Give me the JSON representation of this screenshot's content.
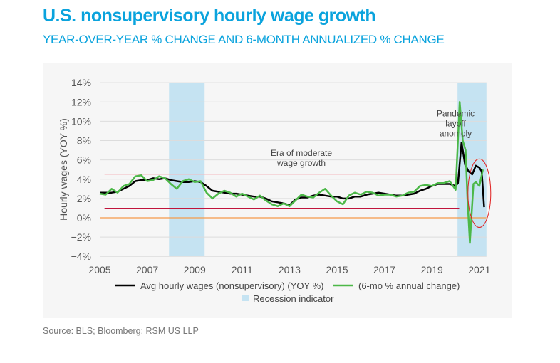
{
  "title": "U.S. nonsupervisory hourly wage growth",
  "subtitle": "YEAR-OVER-YEAR % CHANGE AND 6-MONTH ANNUALIZED % CHANGE",
  "source": "Source: BLS; Bloomberg; RSM US LLP",
  "chart_data": {
    "type": "line",
    "ylabel": "Hourly wages (YOY %)",
    "xlabel": "",
    "ylim": [
      -4,
      14
    ],
    "xlim": [
      2005,
      2021.3
    ],
    "yticks": [
      14,
      12,
      10,
      8,
      6,
      4,
      2,
      0,
      -2,
      -4
    ],
    "ytick_labels": [
      "14%",
      "12%",
      "10%",
      "8%",
      "6%",
      "4%",
      "2%",
      "0%",
      "−2%",
      "−4%"
    ],
    "xticks": [
      "2005",
      "2007",
      "2009",
      "2011",
      "2013",
      "2015",
      "2017",
      "2019",
      "2021"
    ],
    "grid": true,
    "legend_position": "bottom",
    "colors": {
      "yoy": "#000000",
      "six_month": "#4cb848",
      "recession": "#c5e3f2",
      "zero_line": "#f59a4a",
      "ref_high": "#f4b8bd",
      "ref_low": "#c0143c",
      "ellipse": "#e02020"
    },
    "reference_lines": [
      4.5,
      1.0,
      0
    ],
    "recessions": [
      [
        2007.92,
        2009.42
      ],
      [
        2020.08,
        2021.3
      ]
    ],
    "annotations": [
      {
        "text": [
          "Era of moderate",
          "wage growth"
        ],
        "x": 2013.5,
        "y": 6.4
      },
      {
        "text": [
          "Pandemic",
          "layoff",
          "anomoly"
        ],
        "x": 2020.0,
        "y": 10.5
      }
    ],
    "highlight_ellipse": {
      "x_range": [
        2020.7,
        2021.3
      ],
      "y_range": [
        -1.0,
        6.1
      ]
    },
    "series": [
      {
        "name": "Avg hourly wages (nonsupervisory) (YOY %)",
        "key": "yoy",
        "x": [
          2005,
          2005.25,
          2005.5,
          2005.75,
          2006,
          2006.25,
          2006.5,
          2006.75,
          2007,
          2007.25,
          2007.5,
          2007.75,
          2008,
          2008.25,
          2008.5,
          2008.75,
          2009,
          2009.25,
          2009.5,
          2009.75,
          2010,
          2010.25,
          2010.5,
          2010.75,
          2011,
          2011.25,
          2011.5,
          2011.75,
          2012,
          2012.25,
          2012.5,
          2012.75,
          2013,
          2013.25,
          2013.5,
          2013.75,
          2014,
          2014.25,
          2014.5,
          2014.75,
          2015,
          2015.25,
          2015.5,
          2015.75,
          2016,
          2016.25,
          2016.5,
          2016.75,
          2017,
          2017.25,
          2017.5,
          2017.75,
          2018,
          2018.25,
          2018.5,
          2018.75,
          2019,
          2019.25,
          2019.5,
          2019.75,
          2020,
          2020.1,
          2020.25,
          2020.4,
          2020.55,
          2020.7,
          2020.85,
          2021.0,
          2021.1,
          2021.2
        ],
        "y": [
          2.6,
          2.6,
          2.6,
          2.7,
          3.0,
          3.3,
          3.8,
          3.9,
          3.9,
          4.1,
          4.0,
          4.1,
          3.9,
          3.8,
          3.7,
          3.7,
          3.8,
          3.7,
          3.3,
          2.8,
          2.7,
          2.6,
          2.5,
          2.5,
          2.4,
          2.3,
          2.2,
          2.2,
          2.0,
          1.7,
          1.6,
          1.5,
          1.3,
          1.9,
          2.1,
          2.1,
          2.3,
          2.4,
          2.3,
          2.2,
          2.2,
          2.0,
          2.0,
          2.2,
          2.2,
          2.4,
          2.5,
          2.6,
          2.5,
          2.4,
          2.3,
          2.3,
          2.4,
          2.5,
          2.8,
          3.0,
          3.3,
          3.5,
          3.5,
          3.5,
          3.3,
          3.6,
          7.8,
          5.5,
          4.8,
          4.5,
          5.4,
          5.2,
          4.8,
          1.1
        ]
      },
      {
        "name": "(6-mo % annual change)",
        "key": "six_month",
        "x": [
          2005,
          2005.25,
          2005.5,
          2005.75,
          2006,
          2006.25,
          2006.5,
          2006.75,
          2007,
          2007.25,
          2007.5,
          2007.75,
          2008,
          2008.25,
          2008.5,
          2008.75,
          2009,
          2009.25,
          2009.5,
          2009.75,
          2010,
          2010.25,
          2010.5,
          2010.75,
          2011,
          2011.25,
          2011.5,
          2011.75,
          2012,
          2012.25,
          2012.5,
          2012.75,
          2013,
          2013.25,
          2013.5,
          2013.75,
          2014,
          2014.25,
          2014.5,
          2014.75,
          2015,
          2015.25,
          2015.5,
          2015.75,
          2016,
          2016.25,
          2016.5,
          2016.75,
          2017,
          2017.25,
          2017.5,
          2017.75,
          2018,
          2018.25,
          2018.5,
          2018.75,
          2019,
          2019.25,
          2019.5,
          2019.75,
          2020,
          2020.17,
          2020.3,
          2020.42,
          2020.5,
          2020.6,
          2020.75,
          2020.85,
          2021.0,
          2021.15
        ],
        "y": [
          2.5,
          2.4,
          3.0,
          2.6,
          3.3,
          3.5,
          4.3,
          4.4,
          3.8,
          3.9,
          4.3,
          4.1,
          3.5,
          3.0,
          3.8,
          4.0,
          3.7,
          3.8,
          2.6,
          2.0,
          2.5,
          2.8,
          2.6,
          2.2,
          2.5,
          2.2,
          1.9,
          2.3,
          1.8,
          1.4,
          1.2,
          1.5,
          1.2,
          1.8,
          2.4,
          2.2,
          2.1,
          2.6,
          3.0,
          2.3,
          1.7,
          1.4,
          2.3,
          2.6,
          2.4,
          2.7,
          2.6,
          2.3,
          2.4,
          2.4,
          2.2,
          2.3,
          2.6,
          2.7,
          3.3,
          3.4,
          3.3,
          3.6,
          3.6,
          3.8,
          2.9,
          12.0,
          8.0,
          7.0,
          2.0,
          -2.6,
          3.5,
          3.7,
          3.3,
          5.0
        ]
      }
    ],
    "legend": [
      {
        "label": "Avg hourly wages (nonsupervisory) (YOY %)",
        "key": "yoy"
      },
      {
        "label": "(6-mo % annual change)",
        "key": "six_month"
      },
      {
        "label": "Recession indicator",
        "key": "recession"
      }
    ]
  }
}
